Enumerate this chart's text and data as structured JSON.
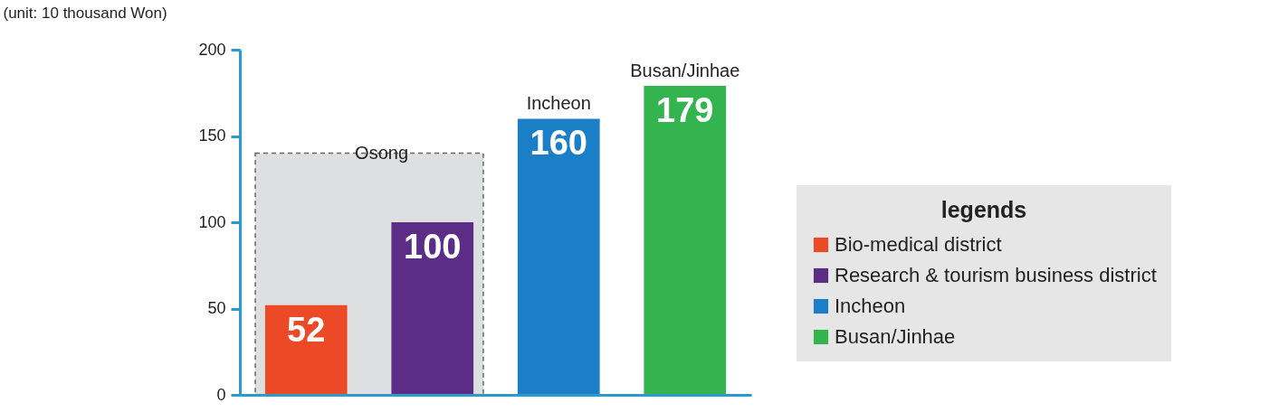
{
  "chart_data": {
    "type": "bar",
    "ylabel": "(unit: 10 thousand Won)",
    "legend_title": "legends",
    "categories": [
      null,
      null,
      null,
      null
    ],
    "series": [
      {
        "name": "Bio-medical district",
        "color": "#ec4a26",
        "values": [
          52,
          null,
          null,
          null
        ]
      },
      {
        "name": "Research & tourism business district",
        "color": "#5b2d86",
        "values": [
          null,
          100,
          null,
          null
        ]
      },
      {
        "name": "Incheon",
        "color": "#1a7fc6",
        "values": [
          null,
          null,
          160,
          null
        ]
      },
      {
        "name": "Busan/Jinhae",
        "color": "#34b44e",
        "values": [
          null,
          null,
          null,
          179
        ]
      }
    ],
    "ylim": [
      0,
      200
    ],
    "yticks": [
      0,
      50,
      100,
      150,
      200
    ],
    "data_labels": true,
    "tick_labels": "y",
    "legend": "right",
    "annotations": [
      "Osong",
      {
        "text": "Incheon",
        "y": 160
      },
      {
        "text": "Busan/Jinhae",
        "y": 179
      }
    ]
  }
}
